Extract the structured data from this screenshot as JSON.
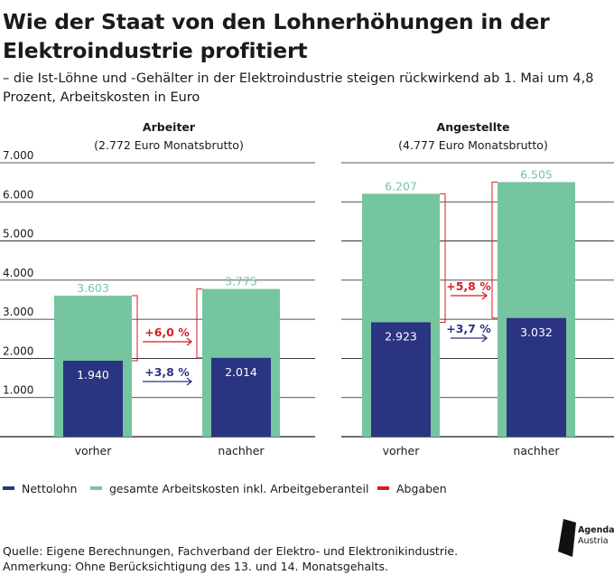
{
  "header": {
    "title": "Wie der Staat von den Lohnerhöhungen in der Elektroindustrie profitiert",
    "subtitle": "– die Ist-Löhne und -Gehälter in der Elektroindustrie steigen rückwirkend ab 1. Mai um 4,8 Prozent, Arbeitskosten in Euro"
  },
  "colors": {
    "netto": "#2b3481",
    "gesamt": "#74c5a0",
    "abgaben": "#d51e26",
    "netto_arrow": "#2b3481"
  },
  "legend": [
    {
      "label": "Nettolohn",
      "color": "#2b3481"
    },
    {
      "label": "gesamte Arbeitskosten inkl. Arbeitgeberanteil",
      "color": "#74c5a0"
    },
    {
      "label": "Abgaben",
      "color": "#d51e26"
    }
  ],
  "chart_data": [
    {
      "type": "bar",
      "title": "Arbeiter",
      "subtitle": "(2.772 Euro Monatsbrutto)",
      "categories": [
        "vorher",
        "nachher"
      ],
      "series": [
        {
          "name": "gesamte Arbeitskosten inkl. Arbeitgeberanteil",
          "values": [
            3603,
            3775
          ],
          "labels": [
            "3.603",
            "3.775"
          ]
        },
        {
          "name": "Nettolohn",
          "values": [
            1940,
            2014
          ],
          "labels": [
            "1.940",
            "2.014"
          ]
        }
      ],
      "annotations": {
        "abgaben_change": "+6,0 %",
        "netto_change": "+3,8 %"
      },
      "ylim": [
        0,
        7000
      ],
      "yticks": [
        1000,
        2000,
        3000,
        4000,
        5000,
        6000,
        7000
      ],
      "ytick_labels": [
        "1.000",
        "2.000",
        "3.000",
        "4.000",
        "5.000",
        "6.000",
        "7.000"
      ]
    },
    {
      "type": "bar",
      "title": "Angestellte",
      "subtitle": "(4.777 Euro Monatsbrutto)",
      "categories": [
        "vorher",
        "nachher"
      ],
      "series": [
        {
          "name": "gesamte Arbeitskosten inkl. Arbeitgeberanteil",
          "values": [
            6207,
            6505
          ],
          "labels": [
            "6.207",
            "6.505"
          ]
        },
        {
          "name": "Nettolohn",
          "values": [
            2923,
            3032
          ],
          "labels": [
            "2.923",
            "3.032"
          ]
        }
      ],
      "annotations": {
        "abgaben_change": "+5,8 %",
        "netto_change": "+3,7 %"
      },
      "ylim": [
        0,
        7000
      ],
      "yticks": [
        1000,
        2000,
        3000,
        4000,
        5000,
        6000,
        7000
      ]
    }
  ],
  "footer": {
    "source": "Quelle: Eigene Berechnungen, Fachverband der Elektro- und Elektronikindustrie.",
    "note": "Anmerkung: Ohne Berücksichtigung des 13. und 14. Monatsgehalts.",
    "logo_line1": "Agenda",
    "logo_line2": "Austria",
    "logo_icon": "agenda-austria-logo-icon"
  }
}
